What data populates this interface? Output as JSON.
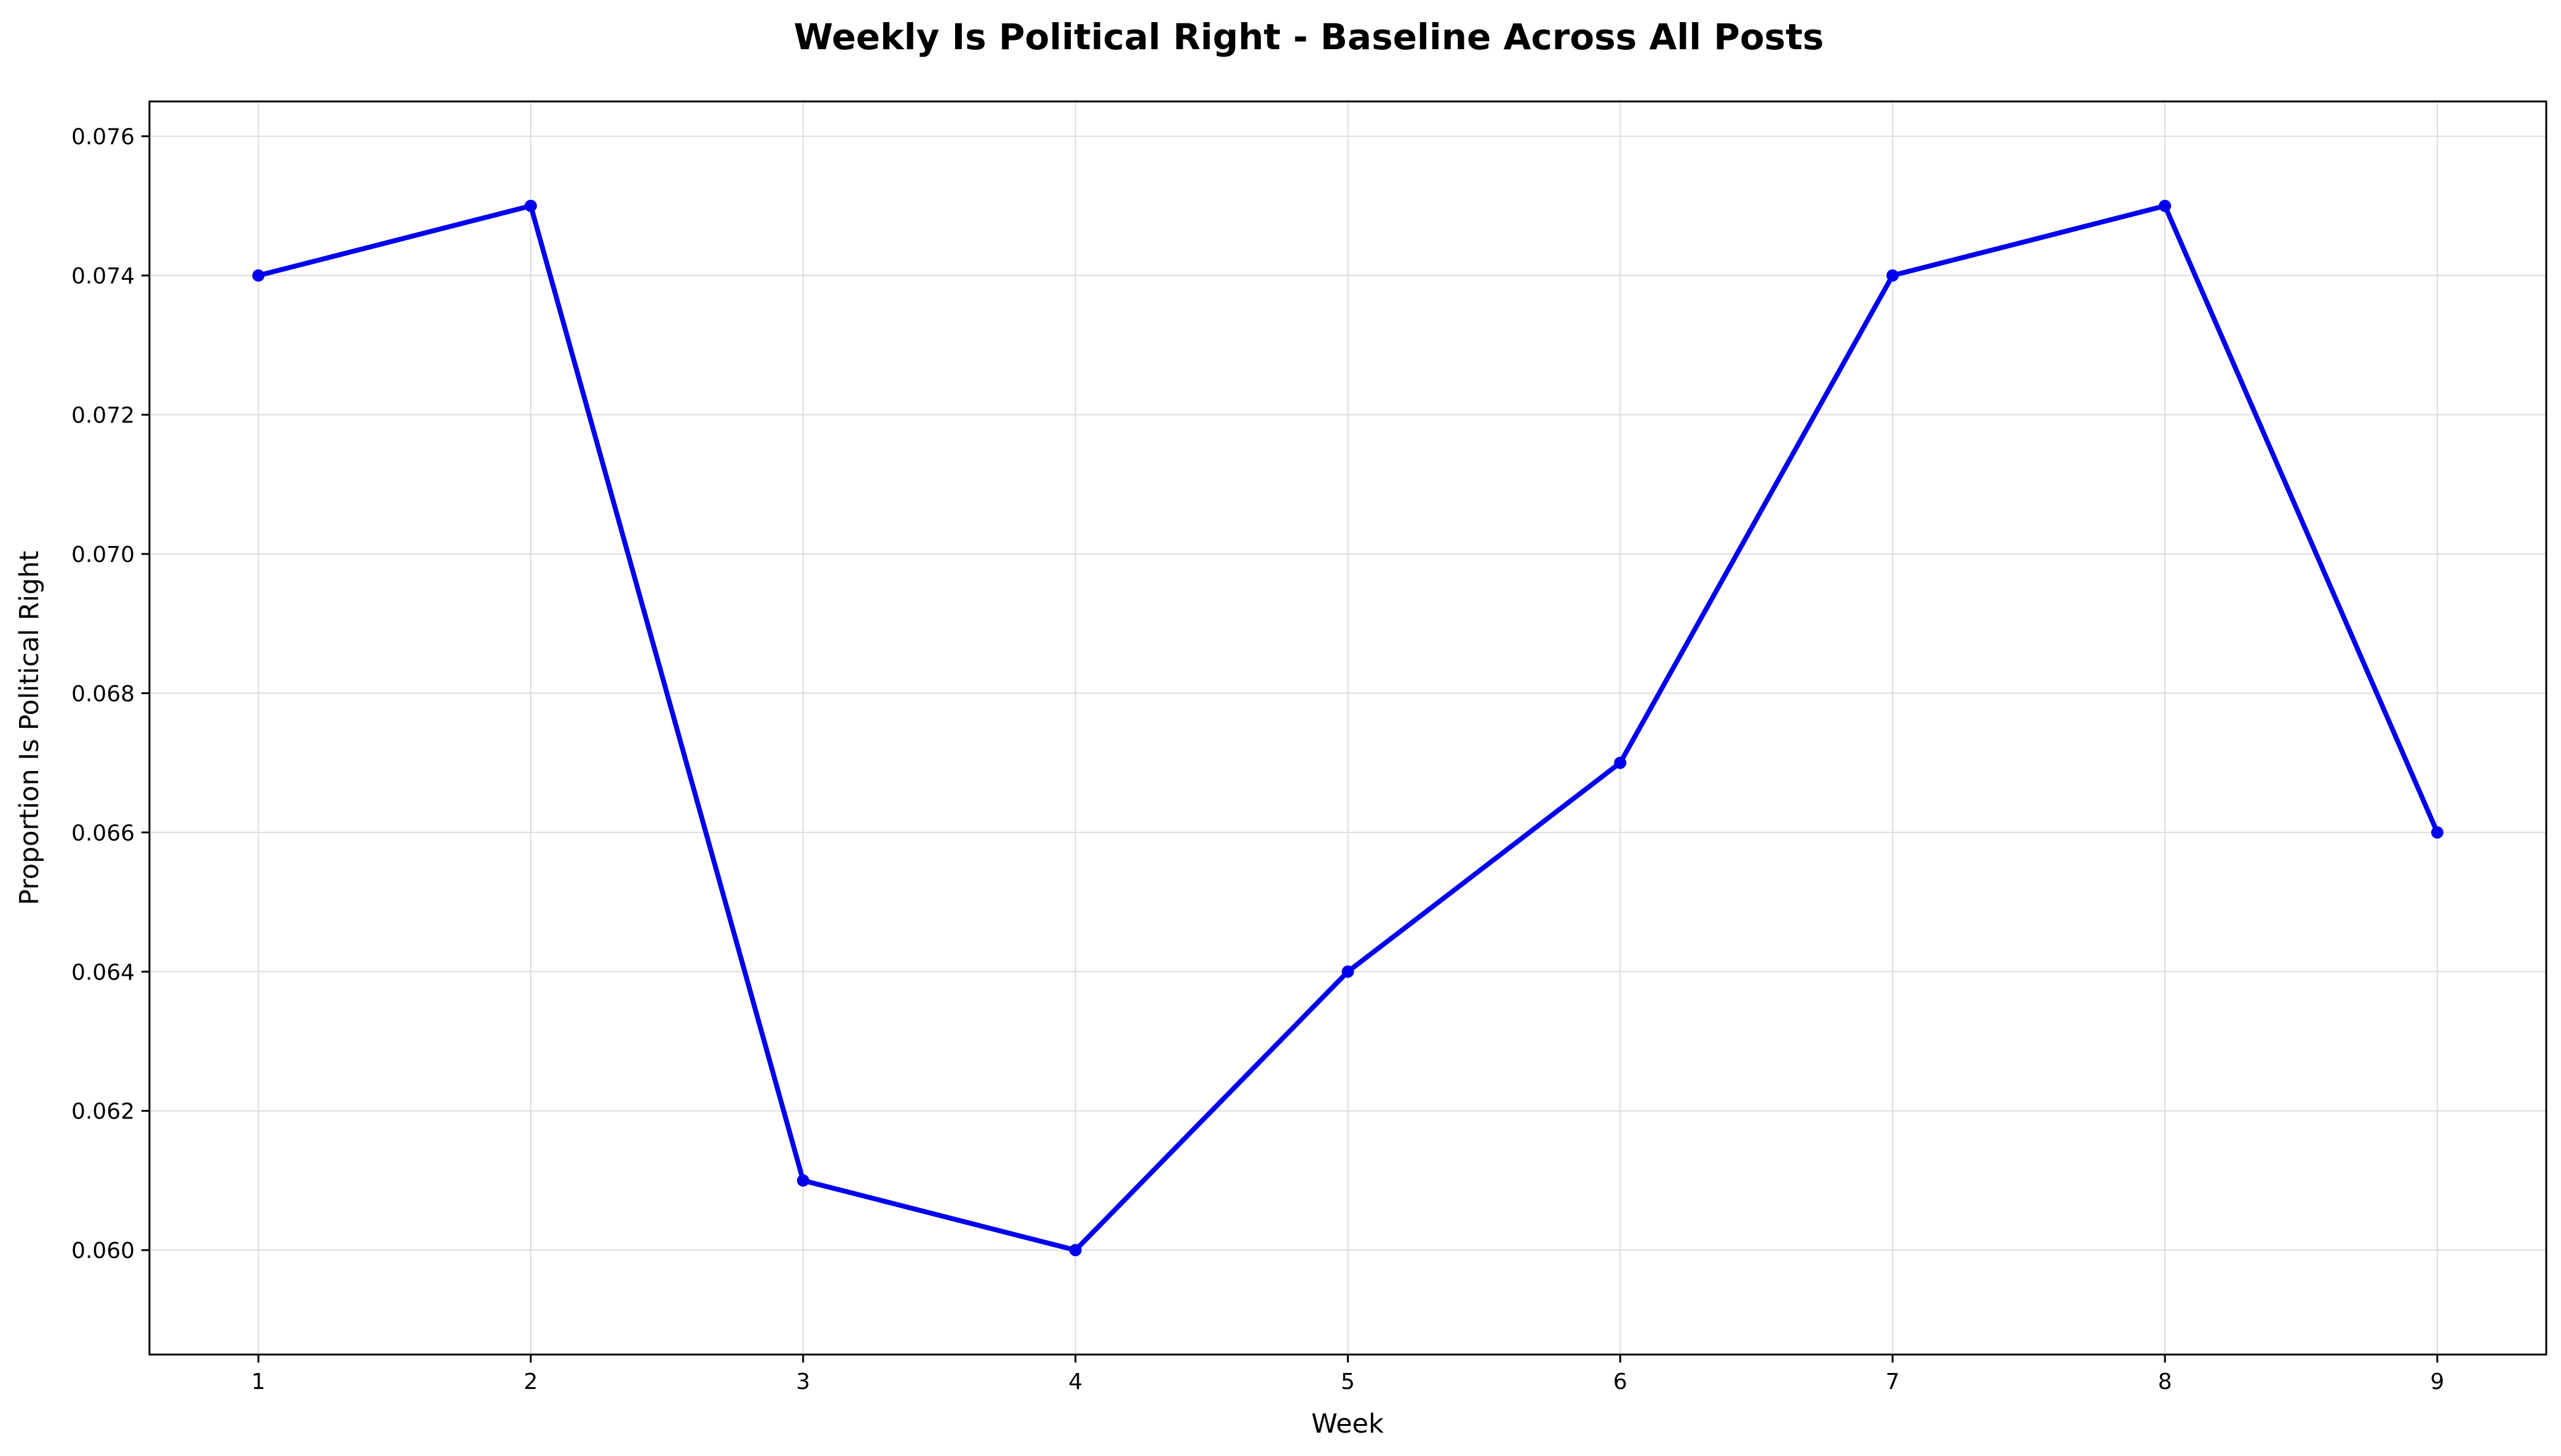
{
  "chart_data": {
    "type": "line",
    "title": "Weekly Is Political Right - Baseline Across All Posts",
    "xlabel": "Week",
    "ylabel": "Proportion Is Political Right",
    "x": [
      1,
      2,
      3,
      4,
      5,
      6,
      7,
      8,
      9
    ],
    "series": [
      {
        "values": [
          0.074,
          0.075,
          0.061,
          0.06,
          0.064,
          0.067,
          0.074,
          0.075,
          0.066
        ],
        "color": "#0000ee",
        "marker": "circle"
      }
    ],
    "xticks": [
      1,
      2,
      3,
      4,
      5,
      6,
      7,
      8,
      9
    ],
    "yticks": [
      "0.060",
      "0.062",
      "0.064",
      "0.066",
      "0.068",
      "0.070",
      "0.072",
      "0.074",
      "0.076"
    ],
    "xlim": [
      0.6,
      9.4
    ],
    "ylim": [
      0.0585,
      0.0765
    ],
    "grid": true,
    "legend": "none"
  }
}
